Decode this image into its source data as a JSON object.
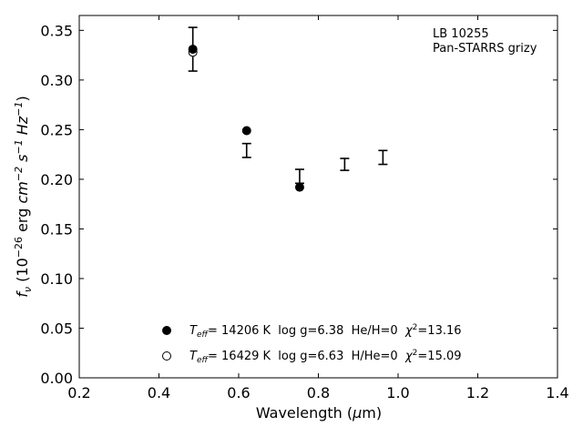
{
  "chart_data": {
    "type": "scatter",
    "annotation": [
      "LB 10255",
      "Pan-STARRS grizy"
    ],
    "xlabel": {
      "text": "Wavelength (",
      "mu": "μ",
      "unit": "m)"
    },
    "ylabel": {
      "f": "f",
      "nu": "ν",
      "open": " (10",
      "exp1": "−26",
      "erg": " erg ",
      "cm": "cm",
      "exp2": "−2",
      "s": " s",
      "exp3": "−1",
      "hz": " Hz",
      "exp4": "−1",
      "close": ")"
    },
    "xlim": [
      0.2,
      1.4
    ],
    "ylim": [
      0.0,
      0.365
    ],
    "xticks": [
      0.2,
      0.4,
      0.6,
      0.8,
      1.0,
      1.2,
      1.4
    ],
    "xtick_labels": [
      "0.2",
      "0.4",
      "0.6",
      "0.8",
      "1.0",
      "1.2",
      "1.4"
    ],
    "yticks": [
      0.0,
      0.05,
      0.1,
      0.15,
      0.2,
      0.25,
      0.3,
      0.35
    ],
    "ytick_labels": [
      "0.00",
      "0.05",
      "0.10",
      "0.15",
      "0.20",
      "0.25",
      "0.30",
      "0.35"
    ],
    "observed": [
      {
        "x": 0.485,
        "y": 0.331,
        "yerr": 0.022
      },
      {
        "x": 0.62,
        "y": 0.229,
        "yerr": 0.007
      },
      {
        "x": 0.753,
        "y": 0.203,
        "yerr": 0.007
      },
      {
        "x": 0.866,
        "y": 0.215,
        "yerr": 0.006
      },
      {
        "x": 0.962,
        "y": 0.222,
        "yerr": 0.007
      }
    ],
    "series": [
      {
        "marker": "filled-circle",
        "x": [
          0.485,
          0.62,
          0.753
        ],
        "y": [
          0.331,
          0.249,
          0.192
        ],
        "legend": {
          "t": "T",
          "eff": "eff",
          "rest": "= 14206 K  log g=6.38  He/H=0  ",
          "chi": "χ",
          "chi_exp": "2",
          "chi_val": "=13.16"
        }
      },
      {
        "marker": "open-circle",
        "x": [
          0.485
        ],
        "y": [
          0.328
        ],
        "legend": {
          "t": "T",
          "eff": "eff",
          "rest": "= 16429 K  log g=6.63  H/He=0  ",
          "chi": "χ",
          "chi_exp": "2",
          "chi_val": "=15.09"
        }
      }
    ]
  }
}
